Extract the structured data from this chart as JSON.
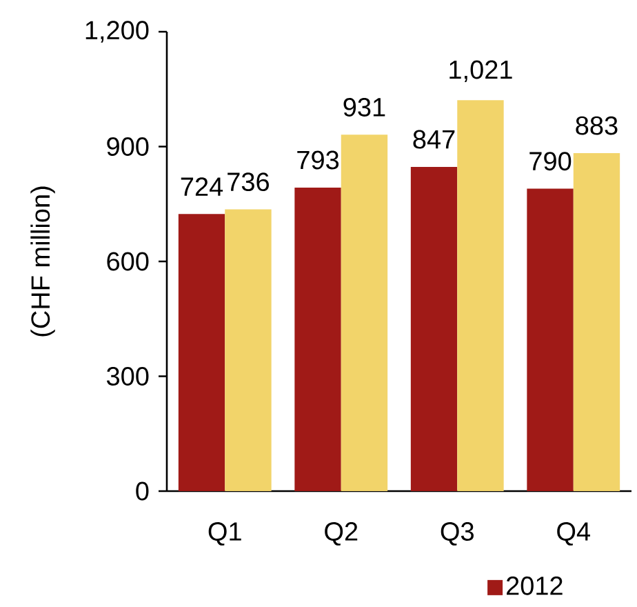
{
  "chart_data": {
    "type": "bar",
    "ylabel": "(CHF million)",
    "categories": [
      "Q1",
      "Q2",
      "Q3",
      "Q4"
    ],
    "series": [
      {
        "name": "2012",
        "color": "#a01a17",
        "values": [
          724,
          793,
          847,
          790
        ],
        "value_labels": [
          "724",
          "793",
          "847",
          "790"
        ]
      },
      {
        "color": "#f2d46a",
        "values": [
          736,
          931,
          1021,
          883
        ],
        "value_labels": [
          "736",
          "931",
          "1,021",
          "883"
        ]
      }
    ],
    "ylim": [
      0,
      1200
    ],
    "yticks": [
      0,
      300,
      600,
      900,
      {
        "value": 1200,
        "label": "1,200"
      }
    ],
    "legend": "bottom right"
  }
}
